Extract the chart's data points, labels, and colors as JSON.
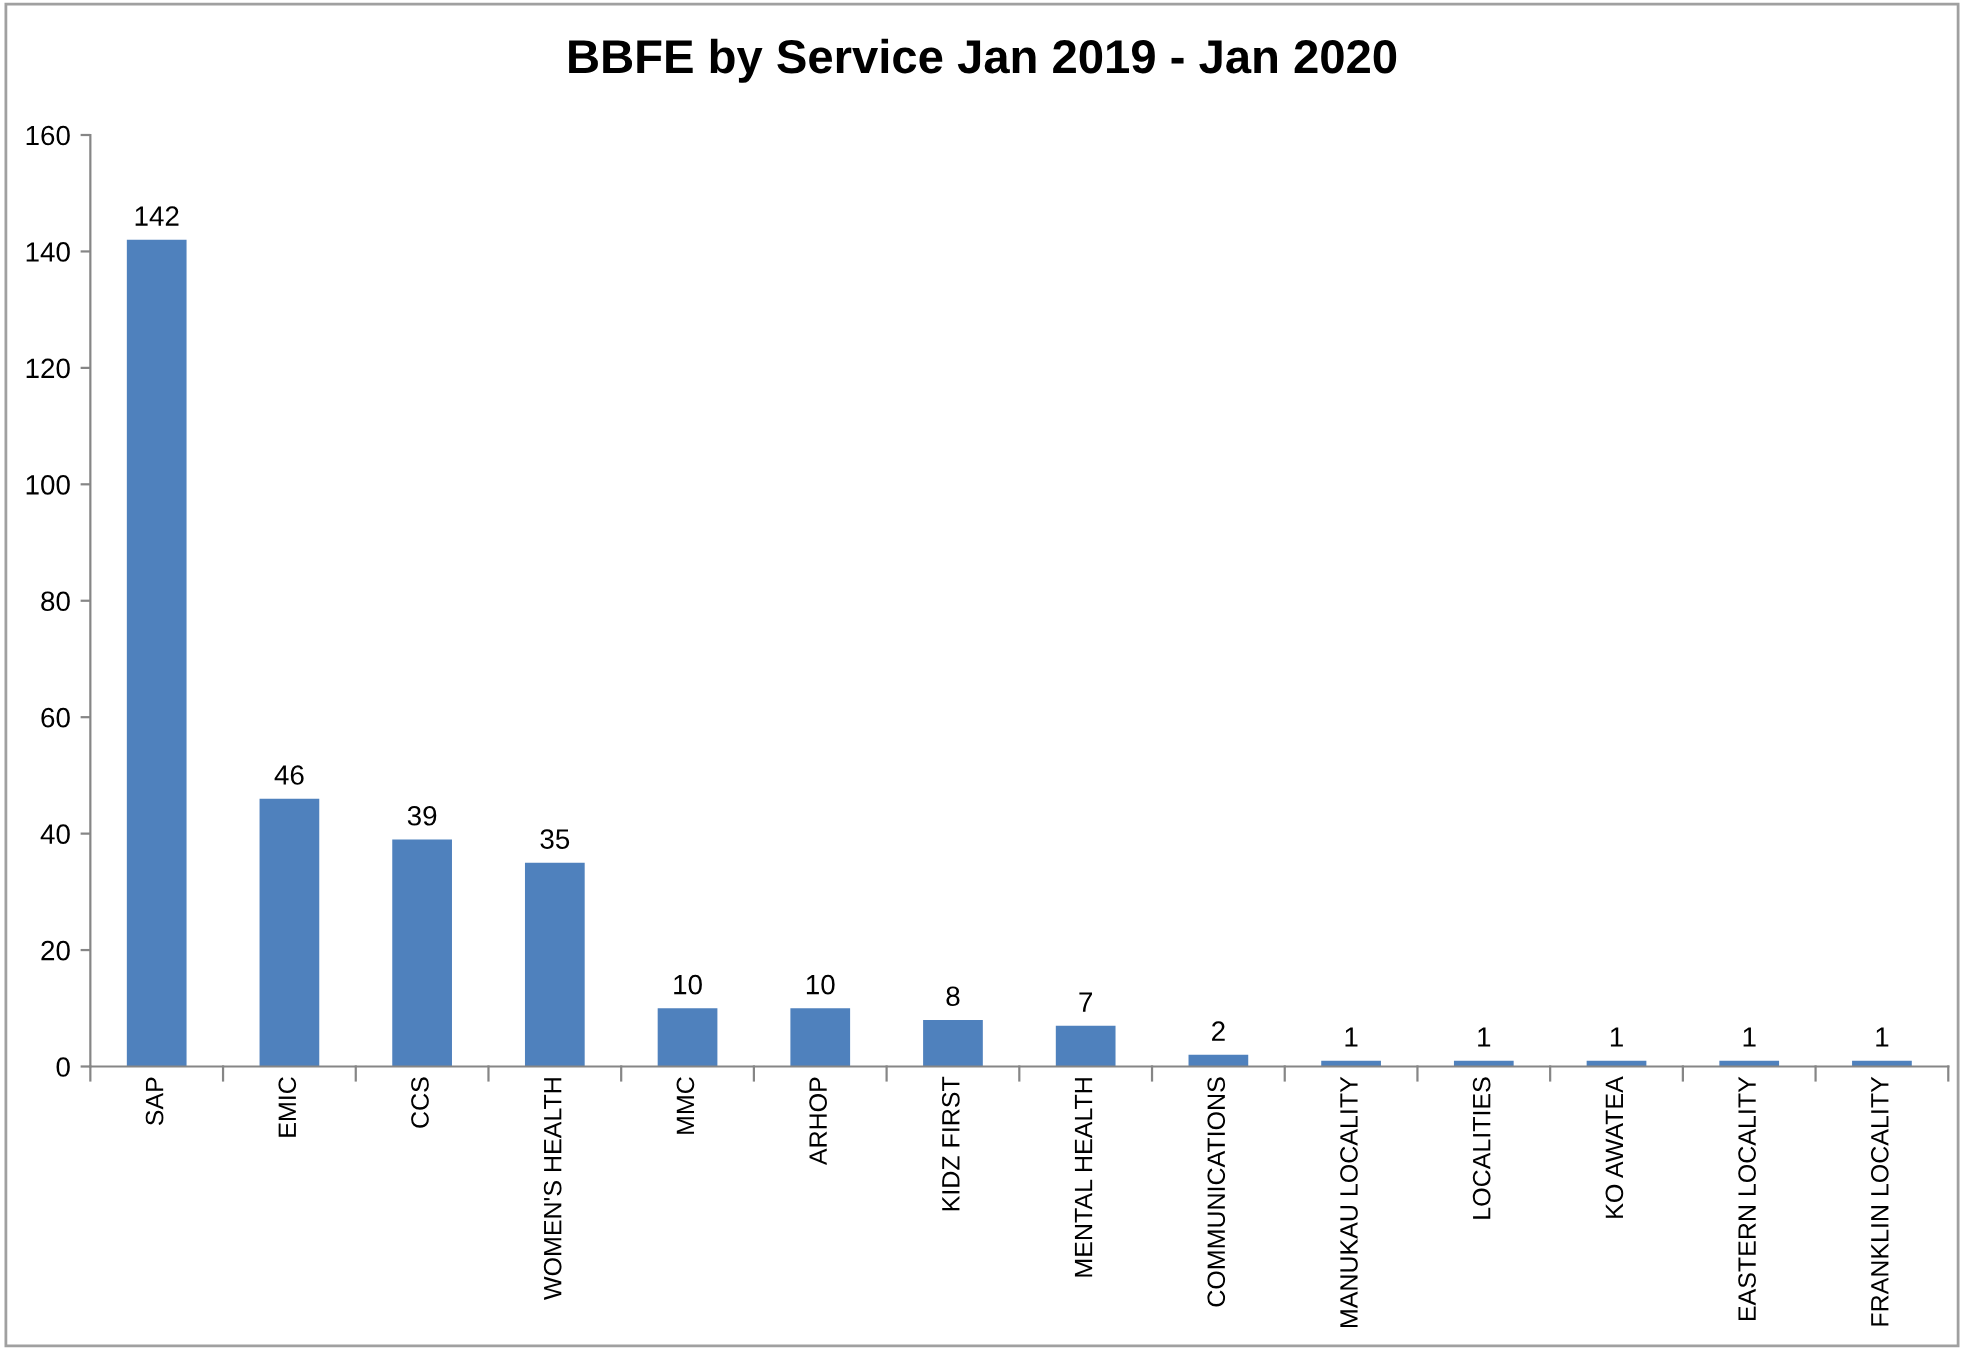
{
  "chart_data": {
    "type": "bar",
    "title": "BBFE by Service Jan 2019 - Jan 2020",
    "categories": [
      "SAP",
      "EMIC",
      "CCS",
      "WOMEN'S HEALTH",
      "MMC",
      "ARHOP",
      "KIDZ FIRST",
      "MENTAL HEALTH",
      "COMMUNICATIONS",
      "MANUKAU LOCALITY",
      "LOCALITIES",
      "KO AWATEA",
      "EASTERN LOCALITY",
      "FRANKLIN LOCALITY"
    ],
    "values": [
      142,
      46,
      39,
      35,
      10,
      10,
      8,
      7,
      2,
      1,
      1,
      1,
      1,
      1
    ],
    "color": "#4f81bd",
    "ylim": [
      0,
      160
    ],
    "yticks": [
      0,
      20,
      40,
      60,
      80,
      100,
      120,
      140,
      160
    ],
    "data_labels": true,
    "grid": false,
    "legend": false
  }
}
